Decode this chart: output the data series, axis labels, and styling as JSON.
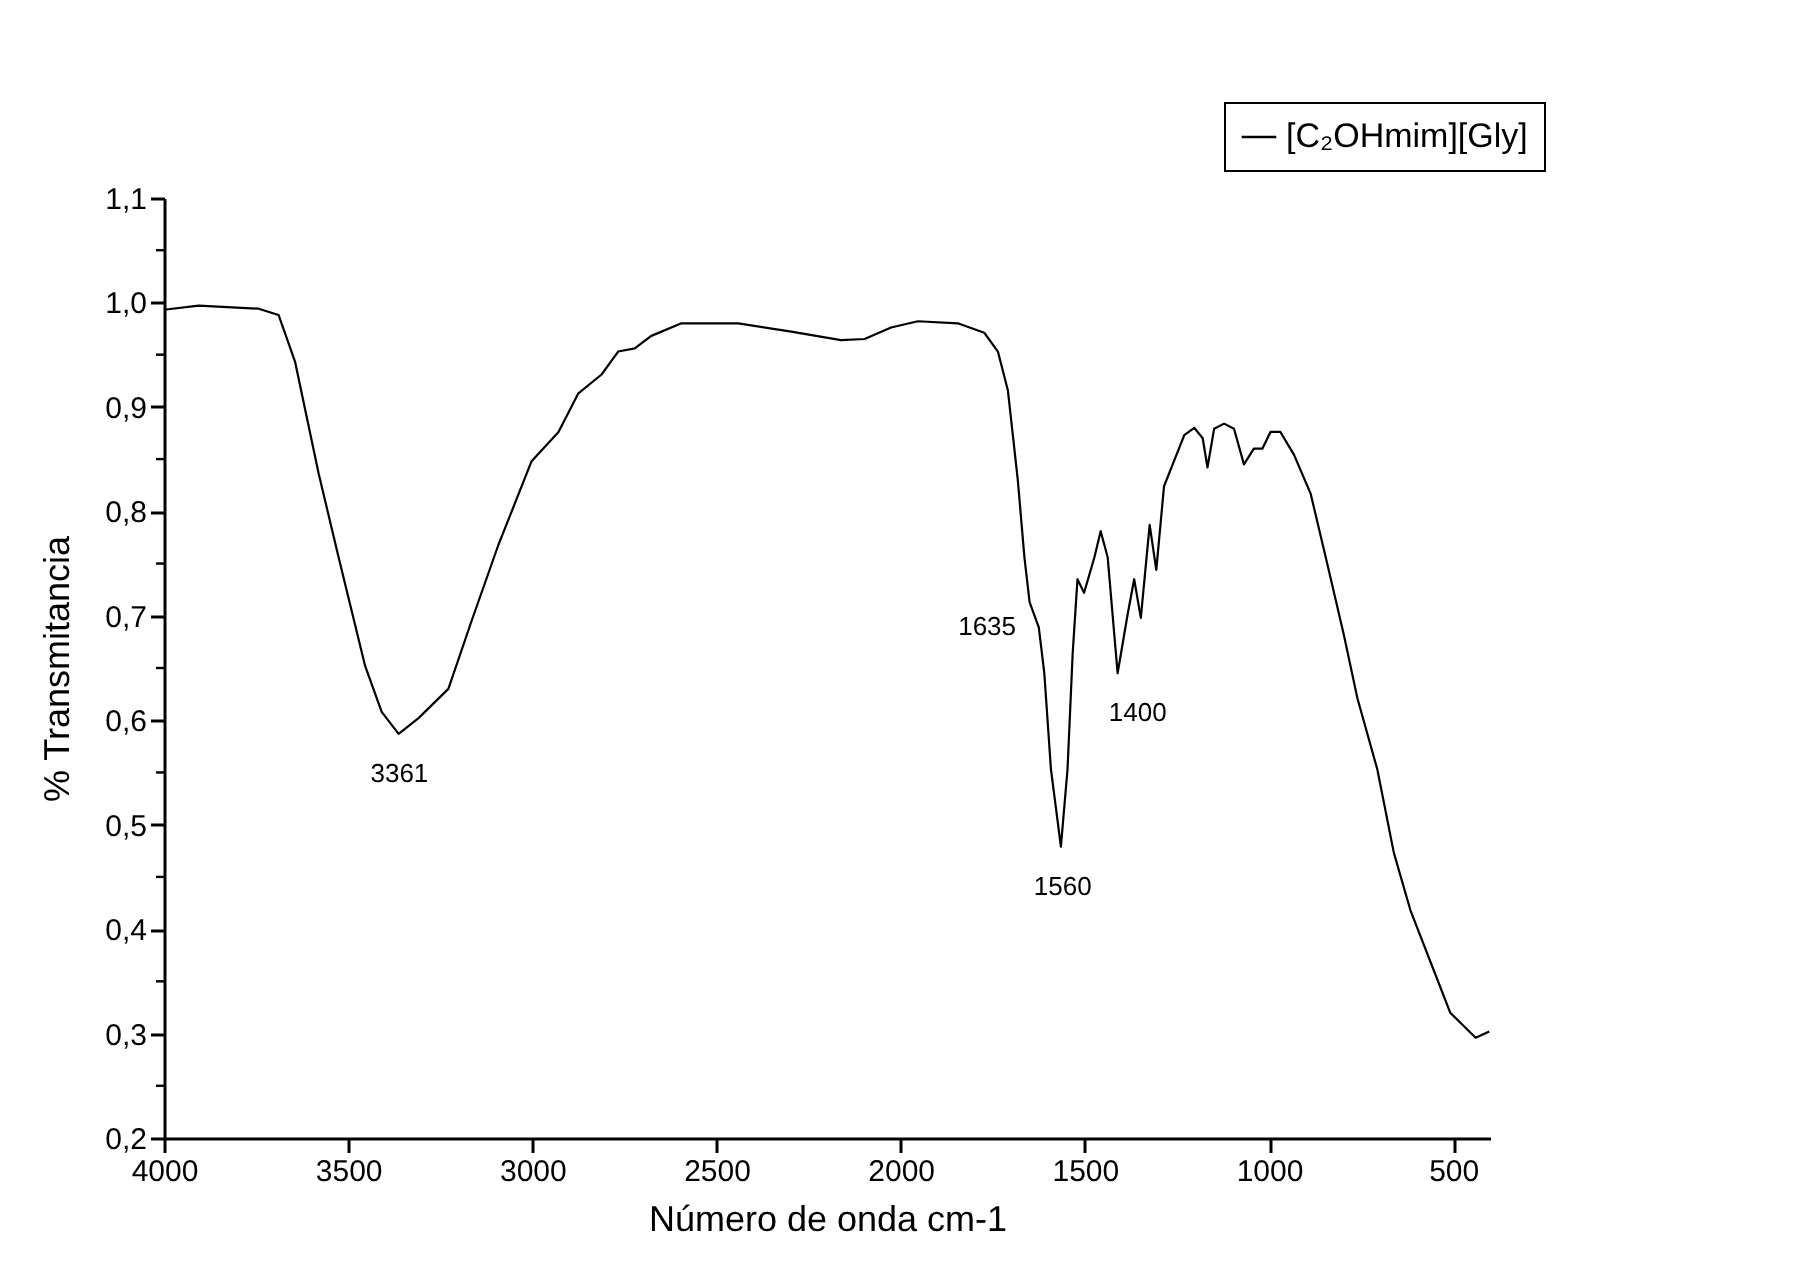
{
  "chart_data": {
    "type": "line",
    "xlabel": "Número de onda cm-1",
    "ylabel": "% Transmitancia",
    "xlim": [
      4000,
      400
    ],
    "xticks": [
      4000,
      3500,
      3000,
      2500,
      2000,
      1500,
      1000,
      500
    ],
    "ylim": [
      0.2,
      1.1
    ],
    "yticks": [
      {
        "value": 0.2,
        "label": "0,2"
      },
      {
        "value": 0.25,
        "label": null
      },
      {
        "value": 0.3,
        "label": "0,3"
      },
      {
        "value": 0.35,
        "label": null
      },
      {
        "value": 0.4,
        "label": "0,4"
      },
      {
        "value": 0.45,
        "label": null
      },
      {
        "value": 0.5,
        "label": "0,5"
      },
      {
        "value": 0.55,
        "label": null
      },
      {
        "value": 0.6,
        "label": "0,6"
      },
      {
        "value": 0.65,
        "label": null
      },
      {
        "value": 0.7,
        "label": "0,7"
      },
      {
        "value": 0.75,
        "label": null
      },
      {
        "value": 0.8,
        "label": "0,8"
      },
      {
        "value": 0.85,
        "label": null
      },
      {
        "value": 0.9,
        "label": "0,9"
      },
      {
        "value": 0.95,
        "label": null
      },
      {
        "value": 1.0,
        "label": "1,0"
      },
      {
        "value": 1.05,
        "label": null
      },
      {
        "value": 1.1,
        "label": "1,1"
      }
    ],
    "grid": false,
    "legend": "top right",
    "marker": "none",
    "line_style": "solid",
    "series": [
      {
        "name": "[C₂OHmim][Gly]",
        "color": "#000000",
        "x": [
          4000,
          3906,
          3743,
          3689,
          3644,
          3580,
          3526,
          3454,
          3409,
          3363,
          3309,
          3228,
          3165,
          3092,
          3002,
          2929,
          2875,
          2812,
          2767,
          2722,
          2677,
          2595,
          2441,
          2297,
          2162,
          2098,
          2026,
          1953,
          1845,
          1773,
          1736,
          1709,
          1682,
          1664,
          1650,
          1625,
          1610,
          1592,
          1565,
          1547,
          1533,
          1520,
          1502,
          1474,
          1457,
          1438,
          1411,
          1384,
          1366,
          1348,
          1324,
          1306,
          1285,
          1258,
          1230,
          1203,
          1180,
          1167,
          1149,
          1122,
          1095,
          1068,
          1041,
          1018,
          996,
          969,
          932,
          887,
          842,
          797,
          760,
          706,
          661,
          616,
          562,
          508,
          439,
          402
        ],
        "values": [
          0.993,
          0.997,
          0.994,
          0.988,
          0.943,
          0.836,
          0.756,
          0.652,
          0.608,
          0.587,
          0.602,
          0.63,
          0.695,
          0.768,
          0.848,
          0.876,
          0.913,
          0.931,
          0.953,
          0.956,
          0.968,
          0.98,
          0.98,
          0.972,
          0.964,
          0.965,
          0.976,
          0.982,
          0.98,
          0.971,
          0.953,
          0.916,
          0.83,
          0.756,
          0.713,
          0.689,
          0.645,
          0.553,
          0.479,
          0.553,
          0.664,
          0.735,
          0.722,
          0.756,
          0.781,
          0.756,
          0.645,
          0.701,
          0.735,
          0.698,
          0.787,
          0.744,
          0.824,
          0.848,
          0.873,
          0.88,
          0.87,
          0.842,
          0.879,
          0.884,
          0.879,
          0.845,
          0.86,
          0.86,
          0.876,
          0.876,
          0.854,
          0.817,
          0.75,
          0.682,
          0.621,
          0.553,
          0.473,
          0.418,
          0.369,
          0.32,
          0.296,
          0.302
        ]
      }
    ],
    "annotations": [
      {
        "text": "3361",
        "x": 3361,
        "y": 0.587
      },
      {
        "text": "1635",
        "x": 1635,
        "y": 0.689
      },
      {
        "text": "1560",
        "x": 1560,
        "y": 0.479
      },
      {
        "text": "1400",
        "x": 1400,
        "y": 0.645
      }
    ]
  }
}
